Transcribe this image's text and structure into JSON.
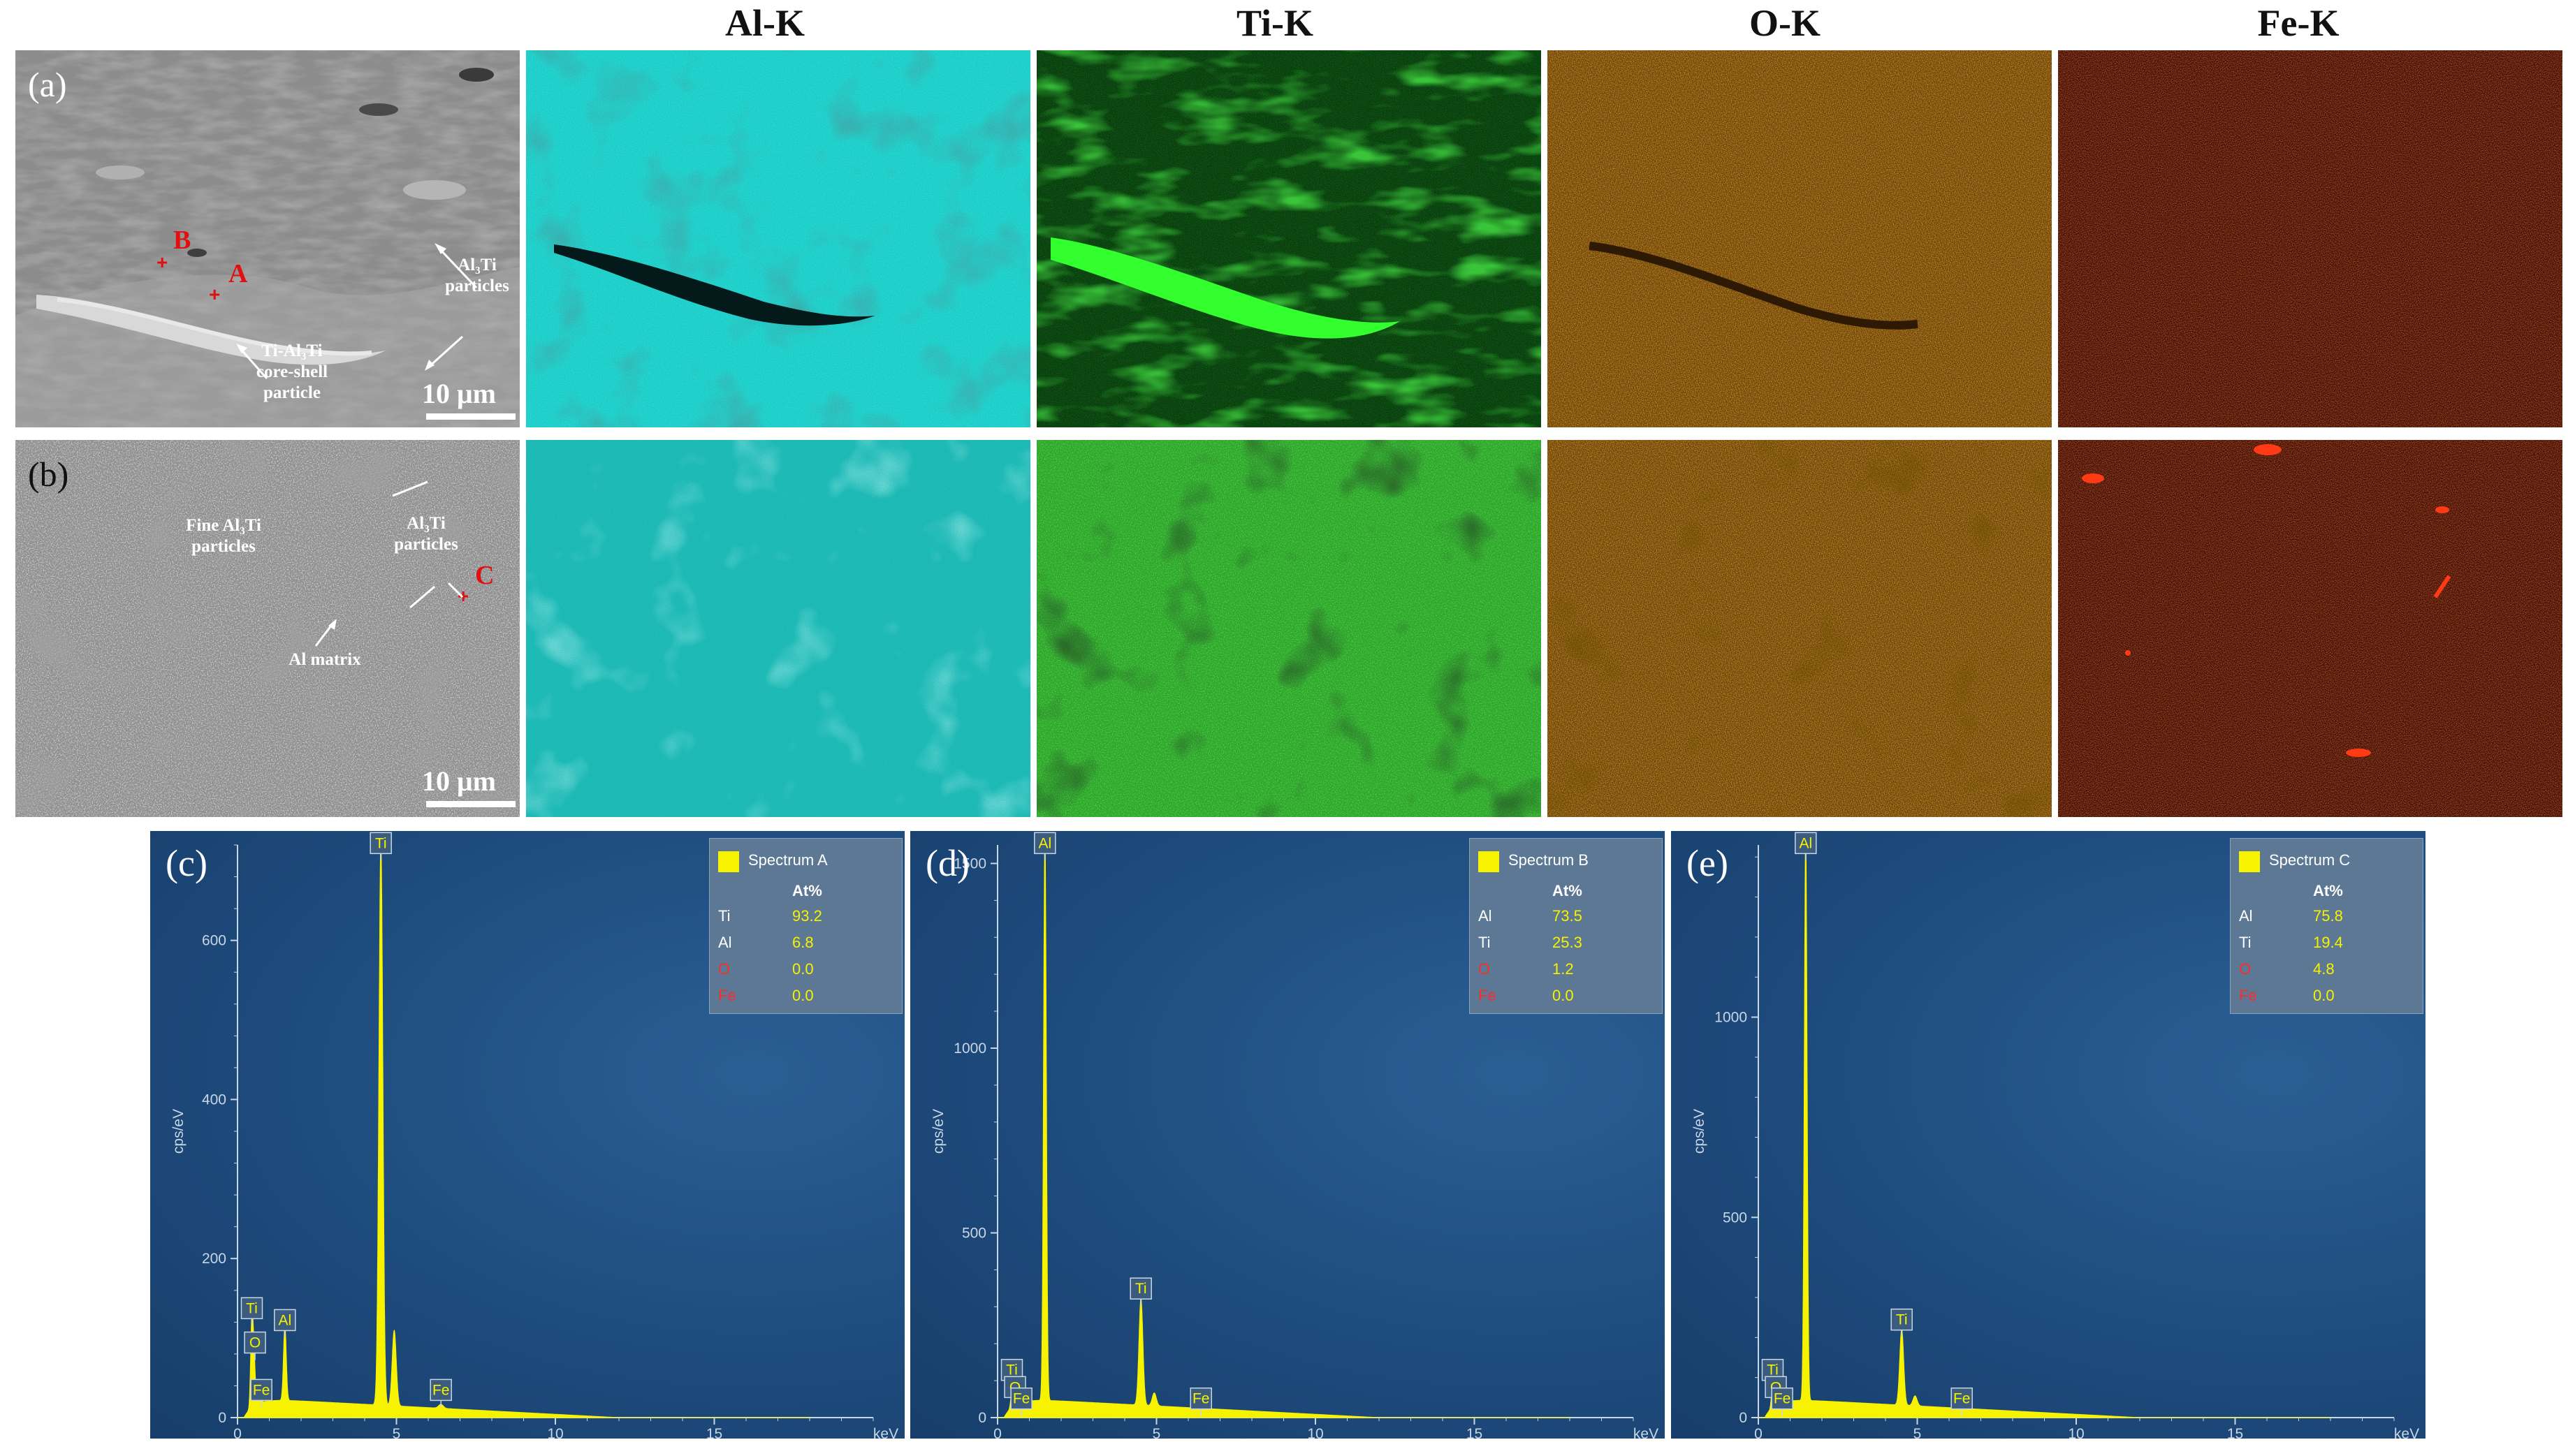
{
  "headers": [
    "Al-K",
    "Ti-K",
    "O-K",
    "Fe-K"
  ],
  "row_a": {
    "label": "(a)",
    "points": [
      "B",
      "A"
    ],
    "annotations": {
      "al3ti": [
        "Al₃Ti",
        "particles"
      ],
      "coreshell": [
        "Ti-Al₃Ti",
        "core-shell",
        "particle"
      ]
    },
    "scale": "10 μm"
  },
  "row_b": {
    "label": "(b)",
    "points": [
      "C"
    ],
    "annotations": {
      "fine": [
        "Fine Al₃Ti",
        "particles"
      ],
      "al3ti": [
        "Al₃Ti",
        "particles"
      ],
      "matrix": [
        "Al matrix"
      ]
    },
    "scale": "10 μm"
  },
  "map_colors": {
    "Al-K": "#2ee8e0",
    "Ti-K": "#22e022",
    "O-K": "#e08a10",
    "Fe-K": "#d12b0c"
  },
  "spectra": [
    {
      "label": "(c)",
      "legend_title": "Spectrum A",
      "unit_header": "At%",
      "rows": [
        {
          "el": "Ti",
          "val": "93.2",
          "red": false
        },
        {
          "el": "Al",
          "val": "6.8",
          "red": false
        },
        {
          "el": "O",
          "val": "0.0",
          "red": true
        },
        {
          "el": "Fe",
          "val": "0.0",
          "red": true
        }
      ],
      "ylabel": "cps/eV",
      "xunit": "keV",
      "yticks": [
        "0",
        "200",
        "400",
        "600"
      ],
      "xticks": [
        "0",
        "5",
        "10",
        "15"
      ],
      "peak_labels": [
        "Ti",
        "Ti",
        "O",
        "Fe",
        "Al",
        "Fe"
      ]
    },
    {
      "label": "(d)",
      "legend_title": "Spectrum B",
      "unit_header": "At%",
      "rows": [
        {
          "el": "Al",
          "val": "73.5",
          "red": false
        },
        {
          "el": "Ti",
          "val": "25.3",
          "red": false
        },
        {
          "el": "O",
          "val": "1.2",
          "red": true
        },
        {
          "el": "Fe",
          "val": "0.0",
          "red": true
        }
      ],
      "ylabel": "cps/eV",
      "xunit": "keV",
      "yticks": [
        "0",
        "500",
        "1000",
        "1500"
      ],
      "xticks": [
        "0",
        "5",
        "10",
        "15"
      ],
      "peak_labels": [
        "Al",
        "Ti",
        "O",
        "Fe",
        "Ti",
        "Fe"
      ]
    },
    {
      "label": "(e)",
      "legend_title": "Spectrum C",
      "unit_header": "At%",
      "rows": [
        {
          "el": "Al",
          "val": "75.8",
          "red": false
        },
        {
          "el": "Ti",
          "val": "19.4",
          "red": false
        },
        {
          "el": "O",
          "val": "4.8",
          "red": true
        },
        {
          "el": "Fe",
          "val": "0.0",
          "red": true
        }
      ],
      "ylabel": "cps/eV",
      "xunit": "keV",
      "yticks": [
        "0",
        "500",
        "1000"
      ],
      "xticks": [
        "0",
        "5",
        "10",
        "15"
      ],
      "peak_labels": [
        "Al",
        "Ti",
        "O",
        "Fe",
        "Ti",
        "Fe"
      ]
    }
  ],
  "chart_data": [
    {
      "type": "line",
      "title": "Spectrum A",
      "ylabel": "cps/eV",
      "xlabel": "keV",
      "xlim": [
        0,
        20
      ],
      "ylim": [
        0,
        720
      ],
      "peaks": [
        {
          "label": "Ti",
          "x": 4.51,
          "y": 710
        },
        {
          "label": "Ti",
          "x": 4.93,
          "y": 95
        },
        {
          "label": "Al",
          "x": 1.49,
          "y": 95
        },
        {
          "label": "Ti",
          "x": 0.45,
          "y": 110
        },
        {
          "label": "O",
          "x": 0.52,
          "y": 60
        },
        {
          "label": "Fe",
          "x": 0.7,
          "y": 25
        },
        {
          "label": "Fe",
          "x": 6.4,
          "y": 5
        }
      ]
    },
    {
      "type": "line",
      "title": "Spectrum B",
      "ylabel": "cps/eV",
      "xlabel": "keV",
      "xlim": [
        0,
        20
      ],
      "ylim": [
        0,
        1550
      ],
      "peaks": [
        {
          "label": "Al",
          "x": 1.49,
          "y": 1540
        },
        {
          "label": "Ti",
          "x": 4.51,
          "y": 290
        },
        {
          "label": "Ti",
          "x": 4.93,
          "y": 35
        },
        {
          "label": "Ti",
          "x": 0.45,
          "y": 40
        },
        {
          "label": "O",
          "x": 0.52,
          "y": 30
        },
        {
          "label": "Fe",
          "x": 0.7,
          "y": 15
        },
        {
          "label": "Fe",
          "x": 6.4,
          "y": 5
        }
      ]
    },
    {
      "type": "line",
      "title": "Spectrum C",
      "ylabel": "cps/eV",
      "xlabel": "keV",
      "xlim": [
        0,
        20
      ],
      "ylim": [
        0,
        1430
      ],
      "peaks": [
        {
          "label": "Al",
          "x": 1.49,
          "y": 1420
        },
        {
          "label": "Ti",
          "x": 4.51,
          "y": 190
        },
        {
          "label": "Ti",
          "x": 4.93,
          "y": 25
        },
        {
          "label": "Ti",
          "x": 0.45,
          "y": 60
        },
        {
          "label": "O",
          "x": 0.52,
          "y": 40
        },
        {
          "label": "Fe",
          "x": 0.7,
          "y": 15
        },
        {
          "label": "Fe",
          "x": 6.4,
          "y": 5
        }
      ]
    }
  ]
}
